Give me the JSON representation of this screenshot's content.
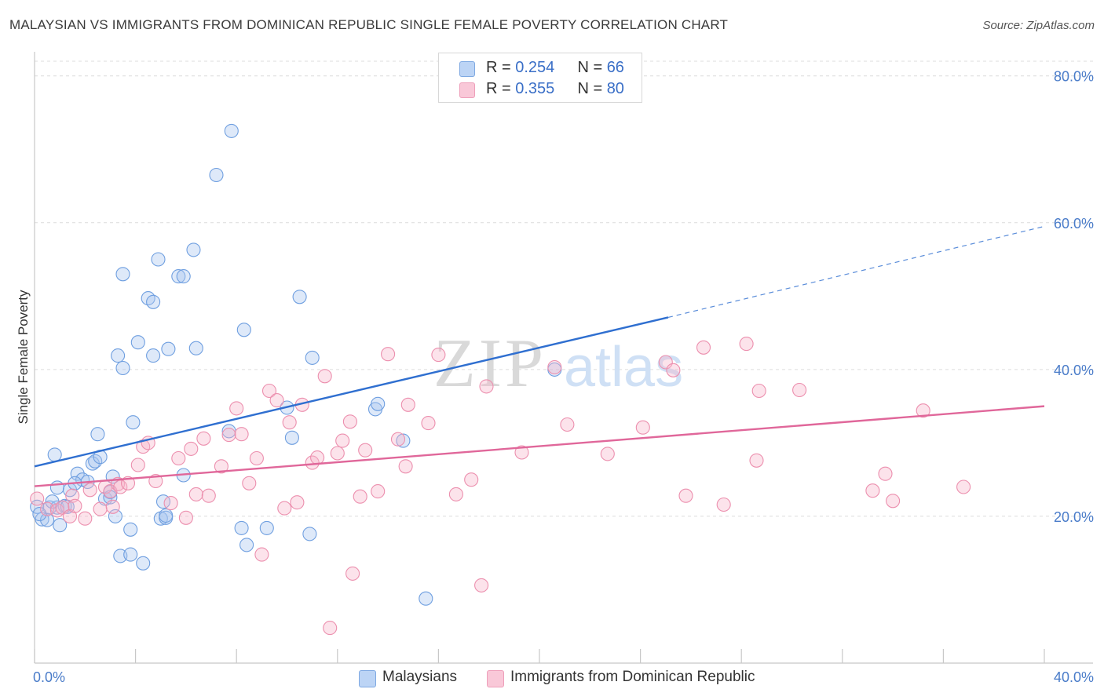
{
  "title": "MALAYSIAN VS IMMIGRANTS FROM DOMINICAN REPUBLIC SINGLE FEMALE POVERTY CORRELATION CHART",
  "source": "Source: ZipAtlas.com",
  "watermark": {
    "zip": "ZIP",
    "atlas": "atlas"
  },
  "legend": {
    "rows": [
      {
        "r_label": "R = ",
        "r_value": "0.254",
        "n_label": "N = ",
        "n_value": "66",
        "color": "#a9c6f0"
      },
      {
        "r_label": "R = ",
        "r_value": "0.355",
        "n_label": "N = ",
        "n_value": "80",
        "color": "#f7b6cb"
      }
    ]
  },
  "bottom_legend": [
    {
      "label": "Malaysians",
      "color": "#a9c6f0"
    },
    {
      "label": "Immigrants from Dominican Republic",
      "color": "#f7b6cb"
    }
  ],
  "chart_data": {
    "type": "scatter",
    "title": "MALAYSIAN VS IMMIGRANTS FROM DOMINICAN REPUBLIC SINGLE FEMALE POVERTY CORRELATION CHART",
    "xlabel": "",
    "ylabel": "Single Female Poverty",
    "xlim": [
      0,
      40
    ],
    "ylim": [
      0,
      82
    ],
    "x_tick_labels": [
      {
        "value": 0,
        "label": "0.0%"
      },
      {
        "value": 40,
        "label": "40.0%"
      }
    ],
    "y_tick_labels": [
      {
        "value": 20,
        "label": "20.0%"
      },
      {
        "value": 40,
        "label": "40.0%"
      },
      {
        "value": 60,
        "label": "60.0%"
      },
      {
        "value": 80,
        "label": "80.0%"
      }
    ],
    "grid": true,
    "legend_position": "top-center",
    "series": [
      {
        "name": "Malaysians",
        "color": "#a9c6f0",
        "stroke": "#6f9fe0",
        "trend": {
          "x0": 0,
          "y0": 26.8,
          "x1": 25.1,
          "y1": 47.1,
          "dash_to_x": 40,
          "dash_to_y": 59.5,
          "color": "#2f6fd0"
        },
        "points": [
          [
            0.1,
            21.3
          ],
          [
            0.3,
            19.6
          ],
          [
            0.5,
            19.5
          ],
          [
            0.6,
            21.2
          ],
          [
            0.9,
            21.2
          ],
          [
            0.8,
            28.4
          ],
          [
            1.0,
            18.8
          ],
          [
            1.2,
            21.4
          ],
          [
            0.9,
            23.9
          ],
          [
            1.4,
            23.6
          ],
          [
            1.7,
            25.8
          ],
          [
            1.9,
            25.0
          ],
          [
            2.1,
            24.7
          ],
          [
            2.3,
            27.2
          ],
          [
            2.4,
            27.5
          ],
          [
            2.6,
            28.1
          ],
          [
            2.5,
            31.2
          ],
          [
            2.8,
            22.4
          ],
          [
            3.1,
            25.4
          ],
          [
            3.0,
            23.3
          ],
          [
            3.2,
            20.0
          ],
          [
            3.3,
            41.9
          ],
          [
            3.4,
            14.6
          ],
          [
            3.5,
            53.0
          ],
          [
            3.5,
            40.2
          ],
          [
            3.8,
            14.8
          ],
          [
            3.8,
            18.2
          ],
          [
            3.9,
            32.8
          ],
          [
            4.1,
            43.7
          ],
          [
            4.3,
            13.6
          ],
          [
            4.5,
            49.7
          ],
          [
            4.7,
            49.2
          ],
          [
            4.7,
            41.9
          ],
          [
            4.9,
            55.0
          ],
          [
            5.0,
            19.7
          ],
          [
            5.1,
            22.0
          ],
          [
            5.2,
            19.8
          ],
          [
            5.3,
            42.8
          ],
          [
            5.7,
            52.7
          ],
          [
            5.9,
            52.7
          ],
          [
            5.9,
            25.6
          ],
          [
            6.3,
            56.3
          ],
          [
            6.4,
            42.9
          ],
          [
            7.2,
            66.5
          ],
          [
            7.7,
            31.6
          ],
          [
            7.8,
            72.5
          ],
          [
            8.2,
            18.4
          ],
          [
            8.3,
            45.4
          ],
          [
            8.4,
            16.1
          ],
          [
            9.2,
            18.4
          ],
          [
            10.0,
            34.8
          ],
          [
            10.2,
            30.7
          ],
          [
            10.5,
            49.9
          ],
          [
            10.9,
            17.6
          ],
          [
            11.0,
            41.6
          ],
          [
            13.5,
            34.6
          ],
          [
            13.6,
            35.3
          ],
          [
            14.6,
            30.3
          ],
          [
            15.5,
            8.8
          ],
          [
            20.6,
            40.0
          ],
          [
            0.2,
            20.3
          ],
          [
            1.3,
            21.3
          ],
          [
            0.7,
            22.0
          ],
          [
            1.6,
            24.5
          ],
          [
            3.0,
            22.6
          ],
          [
            5.2,
            20.1
          ]
        ]
      },
      {
        "name": "Immigrants from Dominican Republic",
        "color": "#f7b6cb",
        "stroke": "#ec8fae",
        "trend": {
          "x0": 0,
          "y0": 24.1,
          "x1": 40,
          "y1": 35.0,
          "color": "#e0679a"
        },
        "points": [
          [
            0.1,
            22.4
          ],
          [
            0.5,
            21.0
          ],
          [
            0.9,
            20.8
          ],
          [
            1.1,
            21.2
          ],
          [
            1.4,
            20.0
          ],
          [
            1.5,
            22.8
          ],
          [
            1.6,
            21.4
          ],
          [
            2.0,
            19.7
          ],
          [
            2.2,
            23.6
          ],
          [
            2.6,
            21.0
          ],
          [
            2.8,
            24.0
          ],
          [
            3.0,
            23.4
          ],
          [
            3.1,
            21.3
          ],
          [
            3.3,
            24.4
          ],
          [
            3.4,
            24.0
          ],
          [
            3.7,
            24.5
          ],
          [
            4.1,
            27.0
          ],
          [
            4.3,
            29.5
          ],
          [
            4.5,
            30.0
          ],
          [
            4.8,
            24.8
          ],
          [
            5.4,
            21.8
          ],
          [
            5.7,
            27.9
          ],
          [
            6.0,
            19.8
          ],
          [
            6.2,
            29.2
          ],
          [
            6.4,
            23.0
          ],
          [
            6.7,
            30.6
          ],
          [
            6.9,
            22.8
          ],
          [
            7.4,
            26.8
          ],
          [
            7.7,
            31.1
          ],
          [
            8.0,
            34.7
          ],
          [
            8.2,
            31.2
          ],
          [
            8.5,
            24.5
          ],
          [
            8.8,
            27.9
          ],
          [
            9.0,
            14.8
          ],
          [
            9.3,
            37.1
          ],
          [
            9.6,
            35.8
          ],
          [
            9.9,
            21.1
          ],
          [
            10.1,
            32.8
          ],
          [
            10.4,
            21.9
          ],
          [
            10.6,
            35.2
          ],
          [
            11.0,
            27.3
          ],
          [
            11.2,
            28.0
          ],
          [
            11.5,
            39.1
          ],
          [
            11.7,
            4.8
          ],
          [
            12.0,
            28.6
          ],
          [
            12.2,
            30.3
          ],
          [
            12.5,
            32.9
          ],
          [
            12.6,
            12.2
          ],
          [
            12.9,
            22.7
          ],
          [
            13.1,
            29.0
          ],
          [
            13.6,
            23.4
          ],
          [
            14.0,
            42.1
          ],
          [
            14.4,
            30.5
          ],
          [
            14.7,
            26.8
          ],
          [
            14.8,
            35.2
          ],
          [
            15.6,
            32.7
          ],
          [
            16.0,
            42.0
          ],
          [
            16.7,
            23.0
          ],
          [
            17.3,
            25.0
          ],
          [
            17.7,
            10.6
          ],
          [
            17.9,
            37.7
          ],
          [
            19.3,
            28.7
          ],
          [
            20.6,
            40.3
          ],
          [
            21.1,
            32.5
          ],
          [
            22.7,
            28.5
          ],
          [
            24.1,
            32.1
          ],
          [
            25.0,
            41.0
          ],
          [
            25.3,
            39.9
          ],
          [
            25.8,
            22.8
          ],
          [
            26.5,
            43.0
          ],
          [
            27.3,
            21.6
          ],
          [
            28.2,
            43.5
          ],
          [
            28.6,
            27.6
          ],
          [
            28.7,
            37.1
          ],
          [
            30.3,
            37.2
          ],
          [
            33.2,
            23.5
          ],
          [
            33.7,
            25.8
          ],
          [
            34.0,
            22.1
          ],
          [
            35.2,
            34.4
          ],
          [
            36.8,
            24.0
          ]
        ]
      }
    ]
  }
}
